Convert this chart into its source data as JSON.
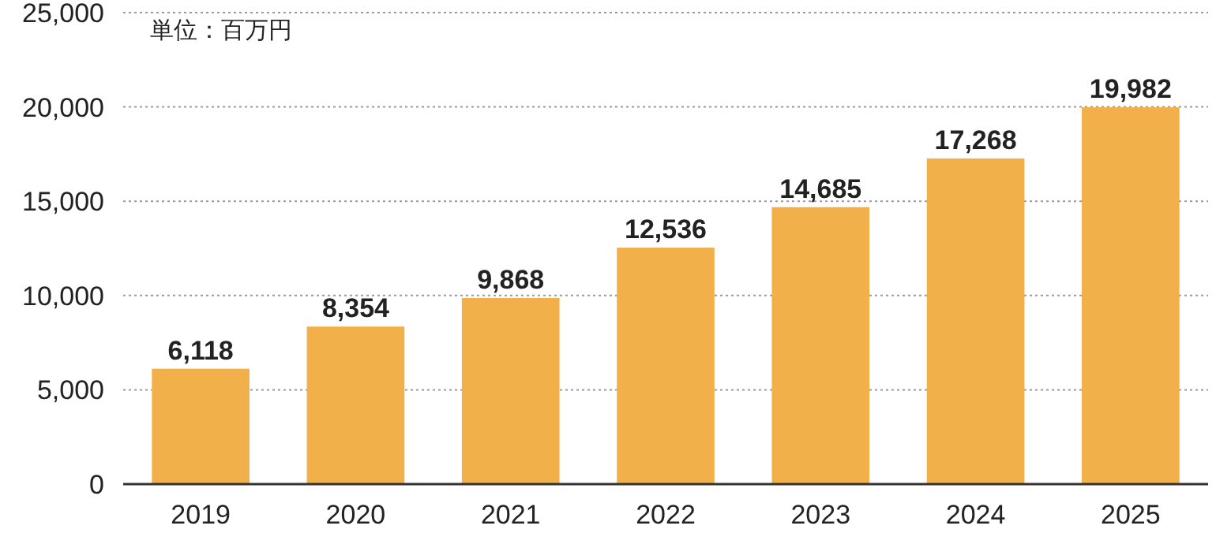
{
  "chart_data": {
    "type": "bar",
    "categories": [
      "2019",
      "2020",
      "2021",
      "2022",
      "2023",
      "2024",
      "2025"
    ],
    "values": [
      6118,
      8354,
      9868,
      12536,
      14685,
      17268,
      19982
    ],
    "color": "#f2b04a",
    "ylim": [
      0,
      25000
    ],
    "yticks": [
      {
        "value": 0,
        "label": "0"
      },
      {
        "value": 5000,
        "label": "5,000"
      },
      {
        "value": 10000,
        "label": "10,000"
      },
      {
        "value": 15000,
        "label": "15,000"
      },
      {
        "value": 20000,
        "label": "20,000"
      },
      {
        "value": 25000,
        "label": "25,000"
      }
    ],
    "grid": "y",
    "value_labels": [
      "6,118",
      "8,354",
      "9,868",
      "12,536",
      "14,685",
      "17,268",
      "19,982"
    ],
    "annotations": [
      "単位：百万円"
    ]
  }
}
